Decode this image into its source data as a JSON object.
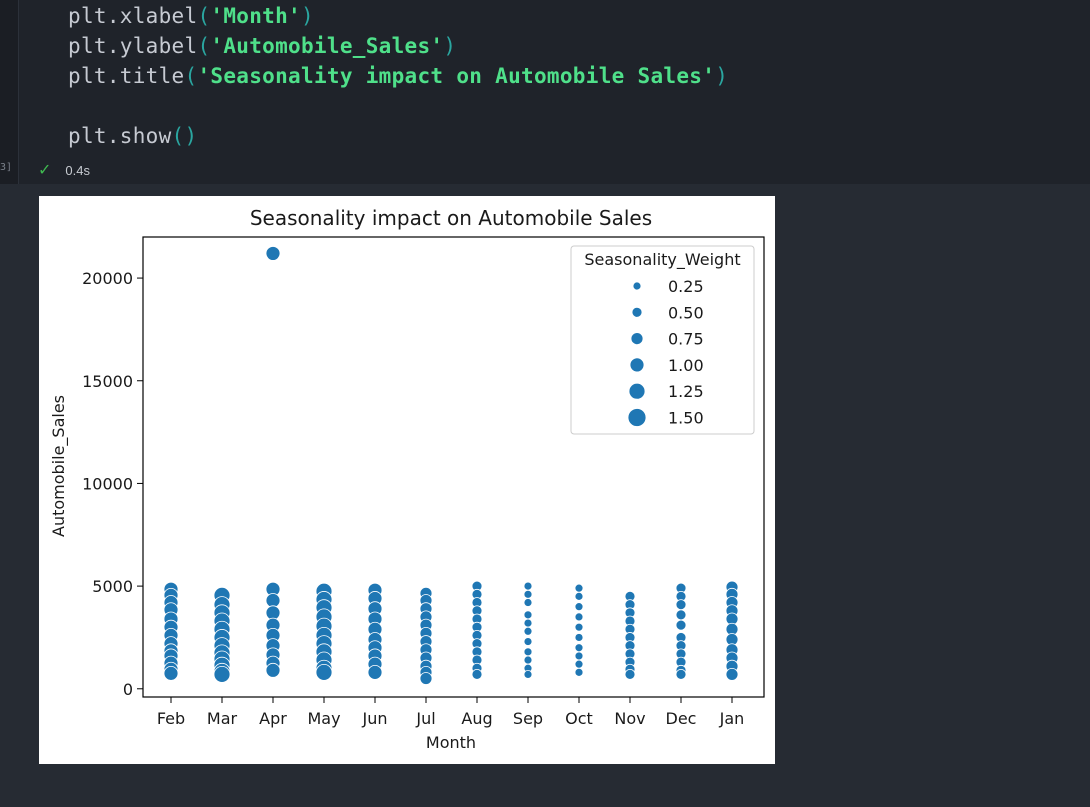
{
  "code": {
    "lines": [
      {
        "fn": "plt.xlabel",
        "arg": "'Month'"
      },
      {
        "fn": "plt.ylabel",
        "arg": "'Automobile_Sales'"
      },
      {
        "fn": "plt.title",
        "arg": "'Seasonality impact on Automobile Sales'"
      },
      {
        "fn": "plt.show",
        "arg": ""
      }
    ],
    "exec_count": "3]",
    "check_icon": "check-icon",
    "duration": "0.4s"
  },
  "colors": {
    "marker": "#1f77b4",
    "string": "#4fe08a",
    "paren": "#2aa6a0",
    "success": "#3fb950"
  },
  "chart_data": {
    "type": "scatter",
    "title": "Seasonality impact on Automobile Sales",
    "xlabel": "Month",
    "ylabel": "Automobile_Sales",
    "categories": [
      "Feb",
      "Mar",
      "Apr",
      "May",
      "Jun",
      "Jul",
      "Aug",
      "Sep",
      "Oct",
      "Nov",
      "Dec",
      "Jan"
    ],
    "yticks": [
      0,
      5000,
      10000,
      15000,
      20000
    ],
    "ytick_labels": [
      "0",
      "5000",
      "10000",
      "15000",
      "20000"
    ],
    "ylim": [
      -400,
      22000
    ],
    "grid": false,
    "legend": {
      "title": "Seasonality_Weight",
      "placement": "top-right",
      "entries": [
        {
          "label": "0.25",
          "weight": 0.25
        },
        {
          "label": "0.50",
          "weight": 0.5
        },
        {
          "label": "0.75",
          "weight": 0.75
        },
        {
          "label": "1.00",
          "weight": 1.0
        },
        {
          "label": "1.25",
          "weight": 1.25
        },
        {
          "label": "1.50",
          "weight": 1.5
        }
      ]
    },
    "points": [
      {
        "month": "Feb",
        "sales": 4850,
        "weight": 1.0
      },
      {
        "month": "Feb",
        "sales": 4550,
        "weight": 1.0
      },
      {
        "month": "Feb",
        "sales": 4200,
        "weight": 1.0
      },
      {
        "month": "Feb",
        "sales": 3850,
        "weight": 1.0
      },
      {
        "month": "Feb",
        "sales": 3400,
        "weight": 1.0
      },
      {
        "month": "Feb",
        "sales": 3000,
        "weight": 1.0
      },
      {
        "month": "Feb",
        "sales": 2600,
        "weight": 1.0
      },
      {
        "month": "Feb",
        "sales": 2200,
        "weight": 1.0
      },
      {
        "month": "Feb",
        "sales": 1850,
        "weight": 1.0
      },
      {
        "month": "Feb",
        "sales": 1600,
        "weight": 1.0
      },
      {
        "month": "Feb",
        "sales": 1250,
        "weight": 1.0
      },
      {
        "month": "Feb",
        "sales": 950,
        "weight": 1.0
      },
      {
        "month": "Feb",
        "sales": 750,
        "weight": 1.0
      },
      {
        "month": "Mar",
        "sales": 4550,
        "weight": 1.25
      },
      {
        "month": "Mar",
        "sales": 4100,
        "weight": 1.25
      },
      {
        "month": "Mar",
        "sales": 3700,
        "weight": 1.25
      },
      {
        "month": "Mar",
        "sales": 3300,
        "weight": 1.25
      },
      {
        "month": "Mar",
        "sales": 2900,
        "weight": 1.25
      },
      {
        "month": "Mar",
        "sales": 2500,
        "weight": 1.25
      },
      {
        "month": "Mar",
        "sales": 2100,
        "weight": 1.25
      },
      {
        "month": "Mar",
        "sales": 1750,
        "weight": 1.25
      },
      {
        "month": "Mar",
        "sales": 1450,
        "weight": 1.25
      },
      {
        "month": "Mar",
        "sales": 1150,
        "weight": 1.25
      },
      {
        "month": "Mar",
        "sales": 850,
        "weight": 1.25
      },
      {
        "month": "Mar",
        "sales": 700,
        "weight": 1.25
      },
      {
        "month": "Apr",
        "sales": 21200,
        "weight": 1.0
      },
      {
        "month": "Apr",
        "sales": 4850,
        "weight": 1.0
      },
      {
        "month": "Apr",
        "sales": 4300,
        "weight": 1.0
      },
      {
        "month": "Apr",
        "sales": 3700,
        "weight": 1.0
      },
      {
        "month": "Apr",
        "sales": 3100,
        "weight": 1.0
      },
      {
        "month": "Apr",
        "sales": 2600,
        "weight": 1.0
      },
      {
        "month": "Apr",
        "sales": 2100,
        "weight": 1.0
      },
      {
        "month": "Apr",
        "sales": 1650,
        "weight": 1.0
      },
      {
        "month": "Apr",
        "sales": 1250,
        "weight": 1.0
      },
      {
        "month": "Apr",
        "sales": 900,
        "weight": 1.0
      },
      {
        "month": "May",
        "sales": 4750,
        "weight": 1.25
      },
      {
        "month": "May",
        "sales": 4350,
        "weight": 1.25
      },
      {
        "month": "May",
        "sales": 3950,
        "weight": 1.25
      },
      {
        "month": "May",
        "sales": 3500,
        "weight": 1.25
      },
      {
        "month": "May",
        "sales": 3050,
        "weight": 1.25
      },
      {
        "month": "May",
        "sales": 2600,
        "weight": 1.25
      },
      {
        "month": "May",
        "sales": 2200,
        "weight": 1.25
      },
      {
        "month": "May",
        "sales": 1800,
        "weight": 1.25
      },
      {
        "month": "May",
        "sales": 1400,
        "weight": 1.25
      },
      {
        "month": "May",
        "sales": 1000,
        "weight": 1.25
      },
      {
        "month": "May",
        "sales": 800,
        "weight": 1.25
      },
      {
        "month": "Jun",
        "sales": 4800,
        "weight": 1.0
      },
      {
        "month": "Jun",
        "sales": 4400,
        "weight": 1.0
      },
      {
        "month": "Jun",
        "sales": 3900,
        "weight": 1.0
      },
      {
        "month": "Jun",
        "sales": 3400,
        "weight": 1.0
      },
      {
        "month": "Jun",
        "sales": 2900,
        "weight": 1.0
      },
      {
        "month": "Jun",
        "sales": 2400,
        "weight": 1.0
      },
      {
        "month": "Jun",
        "sales": 2000,
        "weight": 1.0
      },
      {
        "month": "Jun",
        "sales": 1600,
        "weight": 1.0
      },
      {
        "month": "Jun",
        "sales": 1200,
        "weight": 1.0
      },
      {
        "month": "Jun",
        "sales": 800,
        "weight": 1.0
      },
      {
        "month": "Jul",
        "sales": 4650,
        "weight": 0.75
      },
      {
        "month": "Jul",
        "sales": 4300,
        "weight": 0.75
      },
      {
        "month": "Jul",
        "sales": 3900,
        "weight": 0.75
      },
      {
        "month": "Jul",
        "sales": 3500,
        "weight": 0.75
      },
      {
        "month": "Jul",
        "sales": 3100,
        "weight": 0.75
      },
      {
        "month": "Jul",
        "sales": 2700,
        "weight": 0.75
      },
      {
        "month": "Jul",
        "sales": 2300,
        "weight": 0.75
      },
      {
        "month": "Jul",
        "sales": 1900,
        "weight": 0.75
      },
      {
        "month": "Jul",
        "sales": 1500,
        "weight": 0.75
      },
      {
        "month": "Jul",
        "sales": 1100,
        "weight": 0.75
      },
      {
        "month": "Jul",
        "sales": 800,
        "weight": 0.75
      },
      {
        "month": "Jul",
        "sales": 500,
        "weight": 0.75
      },
      {
        "month": "Aug",
        "sales": 5000,
        "weight": 0.5
      },
      {
        "month": "Aug",
        "sales": 4600,
        "weight": 0.5
      },
      {
        "month": "Aug",
        "sales": 4200,
        "weight": 0.5
      },
      {
        "month": "Aug",
        "sales": 3800,
        "weight": 0.5
      },
      {
        "month": "Aug",
        "sales": 3400,
        "weight": 0.5
      },
      {
        "month": "Aug",
        "sales": 3000,
        "weight": 0.5
      },
      {
        "month": "Aug",
        "sales": 2600,
        "weight": 0.5
      },
      {
        "month": "Aug",
        "sales": 2200,
        "weight": 0.5
      },
      {
        "month": "Aug",
        "sales": 1800,
        "weight": 0.5
      },
      {
        "month": "Aug",
        "sales": 1400,
        "weight": 0.5
      },
      {
        "month": "Aug",
        "sales": 1000,
        "weight": 0.5
      },
      {
        "month": "Aug",
        "sales": 700,
        "weight": 0.5
      },
      {
        "month": "Sep",
        "sales": 5000,
        "weight": 0.25
      },
      {
        "month": "Sep",
        "sales": 4600,
        "weight": 0.25
      },
      {
        "month": "Sep",
        "sales": 4200,
        "weight": 0.25
      },
      {
        "month": "Sep",
        "sales": 3600,
        "weight": 0.25
      },
      {
        "month": "Sep",
        "sales": 3200,
        "weight": 0.25
      },
      {
        "month": "Sep",
        "sales": 2800,
        "weight": 0.25
      },
      {
        "month": "Sep",
        "sales": 2300,
        "weight": 0.25
      },
      {
        "month": "Sep",
        "sales": 1800,
        "weight": 0.25
      },
      {
        "month": "Sep",
        "sales": 1400,
        "weight": 0.25
      },
      {
        "month": "Sep",
        "sales": 1000,
        "weight": 0.25
      },
      {
        "month": "Sep",
        "sales": 700,
        "weight": 0.25
      },
      {
        "month": "Oct",
        "sales": 4900,
        "weight": 0.25
      },
      {
        "month": "Oct",
        "sales": 4500,
        "weight": 0.25
      },
      {
        "month": "Oct",
        "sales": 4000,
        "weight": 0.25
      },
      {
        "month": "Oct",
        "sales": 3500,
        "weight": 0.25
      },
      {
        "month": "Oct",
        "sales": 3000,
        "weight": 0.25
      },
      {
        "month": "Oct",
        "sales": 2500,
        "weight": 0.25
      },
      {
        "month": "Oct",
        "sales": 2000,
        "weight": 0.25
      },
      {
        "month": "Oct",
        "sales": 1600,
        "weight": 0.25
      },
      {
        "month": "Oct",
        "sales": 1200,
        "weight": 0.25
      },
      {
        "month": "Oct",
        "sales": 800,
        "weight": 0.25
      },
      {
        "month": "Nov",
        "sales": 4500,
        "weight": 0.5
      },
      {
        "month": "Nov",
        "sales": 4100,
        "weight": 0.5
      },
      {
        "month": "Nov",
        "sales": 3700,
        "weight": 0.5
      },
      {
        "month": "Nov",
        "sales": 3300,
        "weight": 0.5
      },
      {
        "month": "Nov",
        "sales": 2900,
        "weight": 0.5
      },
      {
        "month": "Nov",
        "sales": 2500,
        "weight": 0.5
      },
      {
        "month": "Nov",
        "sales": 2100,
        "weight": 0.5
      },
      {
        "month": "Nov",
        "sales": 1700,
        "weight": 0.5
      },
      {
        "month": "Nov",
        "sales": 1300,
        "weight": 0.5
      },
      {
        "month": "Nov",
        "sales": 950,
        "weight": 0.5
      },
      {
        "month": "Nov",
        "sales": 700,
        "weight": 0.5
      },
      {
        "month": "Dec",
        "sales": 4900,
        "weight": 0.5
      },
      {
        "month": "Dec",
        "sales": 4500,
        "weight": 0.5
      },
      {
        "month": "Dec",
        "sales": 4100,
        "weight": 0.5
      },
      {
        "month": "Dec",
        "sales": 3600,
        "weight": 0.5
      },
      {
        "month": "Dec",
        "sales": 3100,
        "weight": 0.5
      },
      {
        "month": "Dec",
        "sales": 2500,
        "weight": 0.5
      },
      {
        "month": "Dec",
        "sales": 2100,
        "weight": 0.5
      },
      {
        "month": "Dec",
        "sales": 1700,
        "weight": 0.5
      },
      {
        "month": "Dec",
        "sales": 1300,
        "weight": 0.5
      },
      {
        "month": "Dec",
        "sales": 900,
        "weight": 0.5
      },
      {
        "month": "Dec",
        "sales": 700,
        "weight": 0.5
      },
      {
        "month": "Jan",
        "sales": 4950,
        "weight": 0.75
      },
      {
        "month": "Jan",
        "sales": 4600,
        "weight": 0.75
      },
      {
        "month": "Jan",
        "sales": 4200,
        "weight": 0.75
      },
      {
        "month": "Jan",
        "sales": 3800,
        "weight": 0.75
      },
      {
        "month": "Jan",
        "sales": 3400,
        "weight": 0.75
      },
      {
        "month": "Jan",
        "sales": 2900,
        "weight": 0.75
      },
      {
        "month": "Jan",
        "sales": 2400,
        "weight": 0.75
      },
      {
        "month": "Jan",
        "sales": 1900,
        "weight": 0.75
      },
      {
        "month": "Jan",
        "sales": 1500,
        "weight": 0.75
      },
      {
        "month": "Jan",
        "sales": 1100,
        "weight": 0.75
      },
      {
        "month": "Jan",
        "sales": 700,
        "weight": 0.75
      }
    ]
  }
}
